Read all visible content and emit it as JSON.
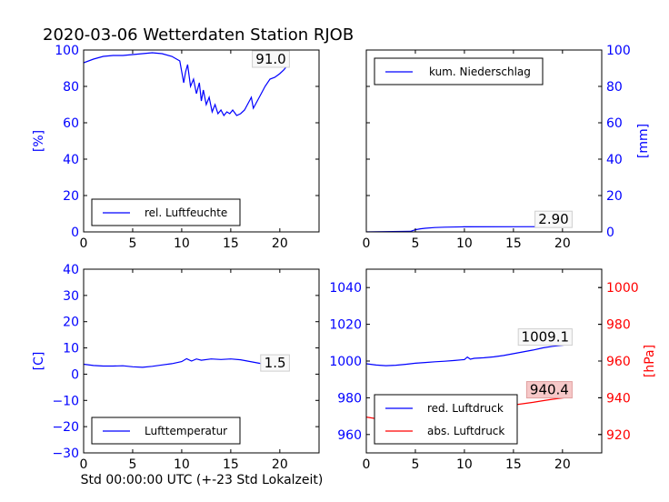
{
  "figure_title": "2020-03-06 Wetterdaten Station RJOB",
  "colors": {
    "blue": "#0000ff",
    "red": "#ff0000",
    "text": "#000000"
  },
  "chart_data": [
    {
      "id": "humidity",
      "type": "line",
      "title": "",
      "xlabel": "",
      "ylabel": "[%]",
      "xlim": [
        0,
        24
      ],
      "ylim": [
        0,
        100
      ],
      "xticks": [
        "0",
        "5",
        "10",
        "15",
        "20"
      ],
      "yticks": [
        "0",
        "20",
        "40",
        "60",
        "80",
        "100"
      ],
      "legend": {
        "placement": "lower-left",
        "entries": [
          "rel. Luftfeuchte"
        ]
      },
      "annotation": "91.0",
      "series": [
        {
          "name": "rel. Luftfeuchte",
          "color": "#0000ff",
          "x": [
            0,
            1,
            2,
            3,
            4,
            5,
            6,
            7,
            8,
            9,
            9.8,
            10.2,
            10.4,
            10.6,
            10.9,
            11.2,
            11.5,
            11.8,
            12.0,
            12.2,
            12.5,
            12.8,
            13.1,
            13.4,
            13.7,
            14.0,
            14.3,
            14.6,
            14.9,
            15.2,
            15.6,
            16.0,
            16.4,
            16.8,
            17.1,
            17.3,
            17.5,
            18.0,
            18.5,
            19.0,
            19.5,
            20.0,
            20.4,
            20.7
          ],
          "y": [
            93,
            95,
            96.5,
            97,
            97,
            97.5,
            98,
            98.5,
            98,
            96.5,
            94,
            82,
            88,
            92,
            80,
            84,
            76,
            82,
            72,
            78,
            70,
            74,
            66,
            70,
            65,
            67,
            64,
            66,
            65,
            67,
            64,
            65,
            67,
            71,
            74,
            68,
            70,
            75,
            80,
            84,
            85,
            87,
            89,
            91
          ]
        }
      ]
    },
    {
      "id": "precipitation",
      "type": "line",
      "title": "",
      "xlabel": "",
      "ylabel": "[mm]",
      "xlim": [
        0,
        24
      ],
      "ylim": [
        0,
        100
      ],
      "xticks": [
        "0",
        "5",
        "10",
        "15",
        "20"
      ],
      "yticks": [
        "0",
        "20",
        "40",
        "60",
        "80",
        "100"
      ],
      "y_axis_side": "right",
      "legend": {
        "placement": "top-left",
        "entries": [
          "kum. Niederschlag"
        ]
      },
      "annotation": "2.90",
      "series": [
        {
          "name": "kum. Niederschlag",
          "color": "#0000ff",
          "x": [
            0,
            4.5,
            5,
            5.5,
            6,
            7,
            8,
            10,
            15,
            20.7
          ],
          "y": [
            0,
            0.3,
            1.2,
            1.7,
            2.0,
            2.4,
            2.6,
            2.8,
            2.85,
            2.9
          ]
        }
      ]
    },
    {
      "id": "temperature",
      "type": "line",
      "title": "",
      "xlabel": "Std 00:00:00 UTC (+-23 Std Lokalzeit)",
      "ylabel": "[C]",
      "xlim": [
        0,
        24
      ],
      "ylim": [
        -30,
        40
      ],
      "xticks": [
        "0",
        "5",
        "10",
        "15",
        "20"
      ],
      "yticks": [
        "−30",
        "−20",
        "−10",
        "0",
        "10",
        "20",
        "30",
        "40"
      ],
      "legend": {
        "placement": "lower-left",
        "entries": [
          "Lufttemperatur"
        ]
      },
      "annotation": "1.5",
      "series": [
        {
          "name": "Lufttemperatur",
          "color": "#0000ff",
          "x": [
            0,
            1,
            2,
            3,
            4,
            5,
            6,
            7,
            8,
            9,
            10,
            10.5,
            11,
            11.5,
            12,
            13,
            14,
            15,
            16,
            17,
            18,
            19,
            20,
            20.7
          ],
          "y": [
            3.8,
            3.3,
            3.1,
            3.1,
            3.2,
            2.8,
            2.6,
            3.0,
            3.5,
            4.0,
            4.8,
            5.9,
            5.0,
            5.8,
            5.3,
            5.8,
            5.6,
            5.8,
            5.5,
            4.8,
            4.1,
            3.0,
            2.2,
            1.5
          ]
        }
      ]
    },
    {
      "id": "pressure",
      "type": "line",
      "title": "",
      "xlabel": "",
      "ylabel": "",
      "y2label": "[hPa]",
      "xlim": [
        0,
        24
      ],
      "ylim": [
        950,
        1050
      ],
      "y2lim": [
        910,
        1010
      ],
      "xticks": [
        "0",
        "5",
        "10",
        "15",
        "20"
      ],
      "yticks": [
        "960",
        "980",
        "1000",
        "1020",
        "1040"
      ],
      "y2ticks": [
        "920",
        "940",
        "960",
        "980",
        "1000"
      ],
      "legend": {
        "placement": "lower-left",
        "entries": [
          "red. Luftdruck",
          "abs. Luftdruck"
        ]
      },
      "annotations": [
        "1009.1",
        "940.4"
      ],
      "series": [
        {
          "name": "red. Luftdruck",
          "color": "#0000ff",
          "axis": "left",
          "x": [
            0,
            1,
            2,
            3,
            4,
            5,
            6,
            7,
            8,
            9,
            10,
            10.3,
            10.6,
            11,
            12,
            13,
            14,
            15,
            16,
            17,
            18,
            19,
            20,
            20.7
          ],
          "y": [
            998.5,
            997.8,
            997.5,
            997.7,
            998.2,
            998.8,
            999.2,
            999.6,
            999.9,
            1000.3,
            1000.8,
            1002.2,
            1001.0,
            1001.5,
            1001.8,
            1002.3,
            1003.0,
            1004.0,
            1005.0,
            1006.0,
            1007.2,
            1008.0,
            1008.6,
            1009.1
          ]
        },
        {
          "name": "abs. Luftdruck",
          "color": "#ff0000",
          "axis": "right",
          "x": [
            0,
            1,
            2,
            3,
            4,
            5,
            6,
            7,
            8,
            9,
            10,
            11,
            12,
            13,
            14,
            15,
            16,
            17,
            18,
            19,
            20,
            20.7
          ],
          "y": [
            929.5,
            928.6,
            928.5,
            928.8,
            929.2,
            929.8,
            930.3,
            930.8,
            931.4,
            932.0,
            932.7,
            933.4,
            934.1,
            934.8,
            935.5,
            936.1,
            936.8,
            937.5,
            938.4,
            939.2,
            939.9,
            940.4
          ]
        }
      ]
    }
  ]
}
